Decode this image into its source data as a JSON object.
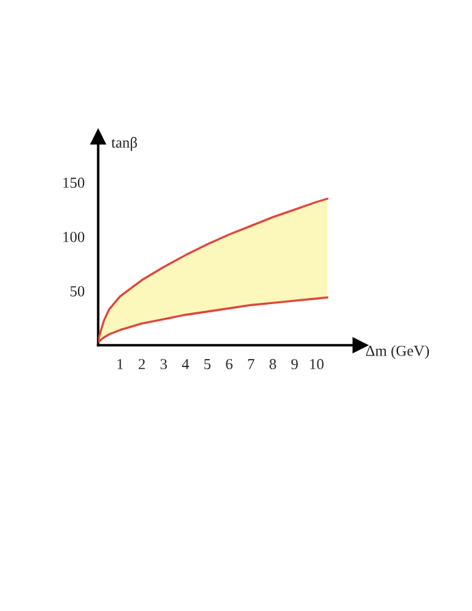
{
  "chart_data": {
    "type": "line",
    "x": [
      0,
      0.25,
      0.5,
      1,
      2,
      3,
      4,
      5,
      6,
      7,
      8,
      9,
      10,
      10.5
    ],
    "series": [
      {
        "color": "#e0463a",
        "values": [
          3,
          7,
          10,
          14,
          20,
          24,
          28,
          31,
          34,
          37,
          39,
          41,
          43,
          44
        ]
      },
      {
        "color": "#e0463a",
        "values": [
          5,
          22,
          33,
          45,
          60,
          72,
          83,
          93,
          102,
          110,
          118,
          125,
          132,
          135
        ],
        "lower": [
          3,
          7,
          10,
          14,
          20,
          24,
          28,
          31,
          34,
          37,
          39,
          41,
          43,
          44
        ],
        "upper": [
          5,
          22,
          33,
          45,
          60,
          72,
          83,
          93,
          102,
          110,
          118,
          125,
          132,
          135
        ]
      }
    ],
    "xlabel": "Δm (GeV)",
    "ylabel": "tanβ",
    "xlim": [
      0,
      12
    ],
    "xticks": [
      1,
      2,
      3,
      4,
      5,
      6,
      7,
      8,
      9,
      10
    ],
    "ylim": [
      0,
      192
    ],
    "yticks": [
      50,
      100,
      150
    ],
    "grid": false,
    "legend": false,
    "marker": "none",
    "line_style": "solid"
  }
}
